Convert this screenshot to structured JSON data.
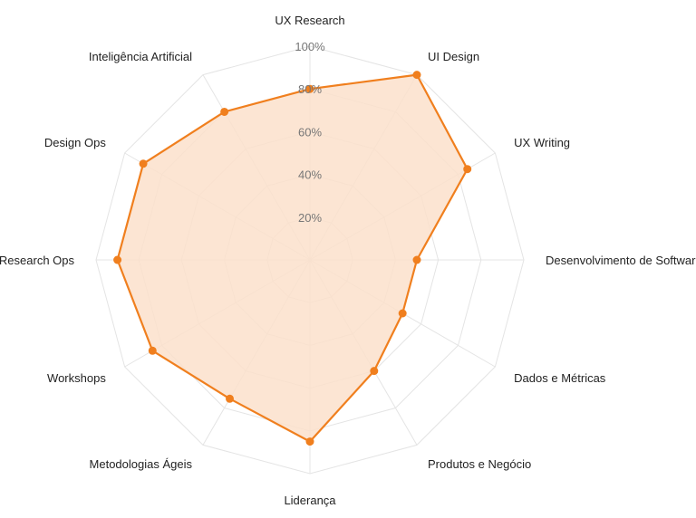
{
  "chart_data": {
    "type": "radar",
    "categories": [
      "UX Research",
      "UI Design",
      "UX Writing",
      "Desenvolvimento de Software",
      "Dados e Métricas",
      "Produtos e Negócio",
      "Liderança",
      "Metodologias Ágeis",
      "Workshops",
      "Research Ops",
      "Design Ops",
      "Inteligência Artificial"
    ],
    "values": [
      80,
      100,
      85,
      50,
      50,
      60,
      85,
      75,
      85,
      90,
      90,
      80
    ],
    "rlim": [
      0,
      100
    ],
    "ticks": [
      "20%",
      "40%",
      "60%",
      "80%",
      "100%"
    ],
    "colors": {
      "line": "#f07f1e",
      "fill": "#fce0cb",
      "grid": "#e4e4e4"
    }
  }
}
